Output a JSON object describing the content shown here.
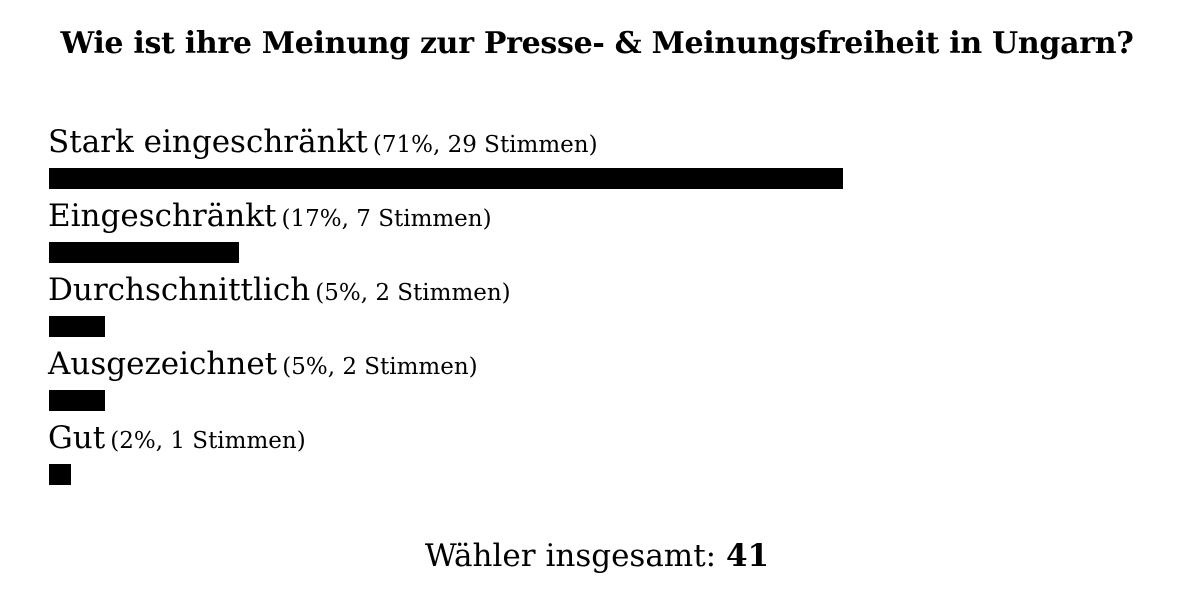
{
  "chart_data": {
    "type": "bar",
    "orientation": "horizontal",
    "title": "Wie ist ihre Meinung zur Presse- & Meinungsfreiheit in Ungarn?",
    "options": [
      {
        "label": "Stark eingeschränkt",
        "stats": "(71%, 29 Stimmen)",
        "percent": 71,
        "votes": 29
      },
      {
        "label": "Eingeschränkt",
        "stats": "(17%, 7 Stimmen)",
        "percent": 17,
        "votes": 7
      },
      {
        "label": "Durchschnittlich",
        "stats": "(5%, 2 Stimmen)",
        "percent": 5,
        "votes": 2
      },
      {
        "label": "Ausgezeichnet",
        "stats": "(5%, 2 Stimmen)",
        "percent": 5,
        "votes": 2
      },
      {
        "label": "Gut",
        "stats": "(2%, 1 Stimmen)",
        "percent": 2,
        "votes": 1
      }
    ],
    "bar_color": "#000000"
  },
  "footer": {
    "total_label": "Wähler insgesamt:",
    "total_value": "41"
  }
}
